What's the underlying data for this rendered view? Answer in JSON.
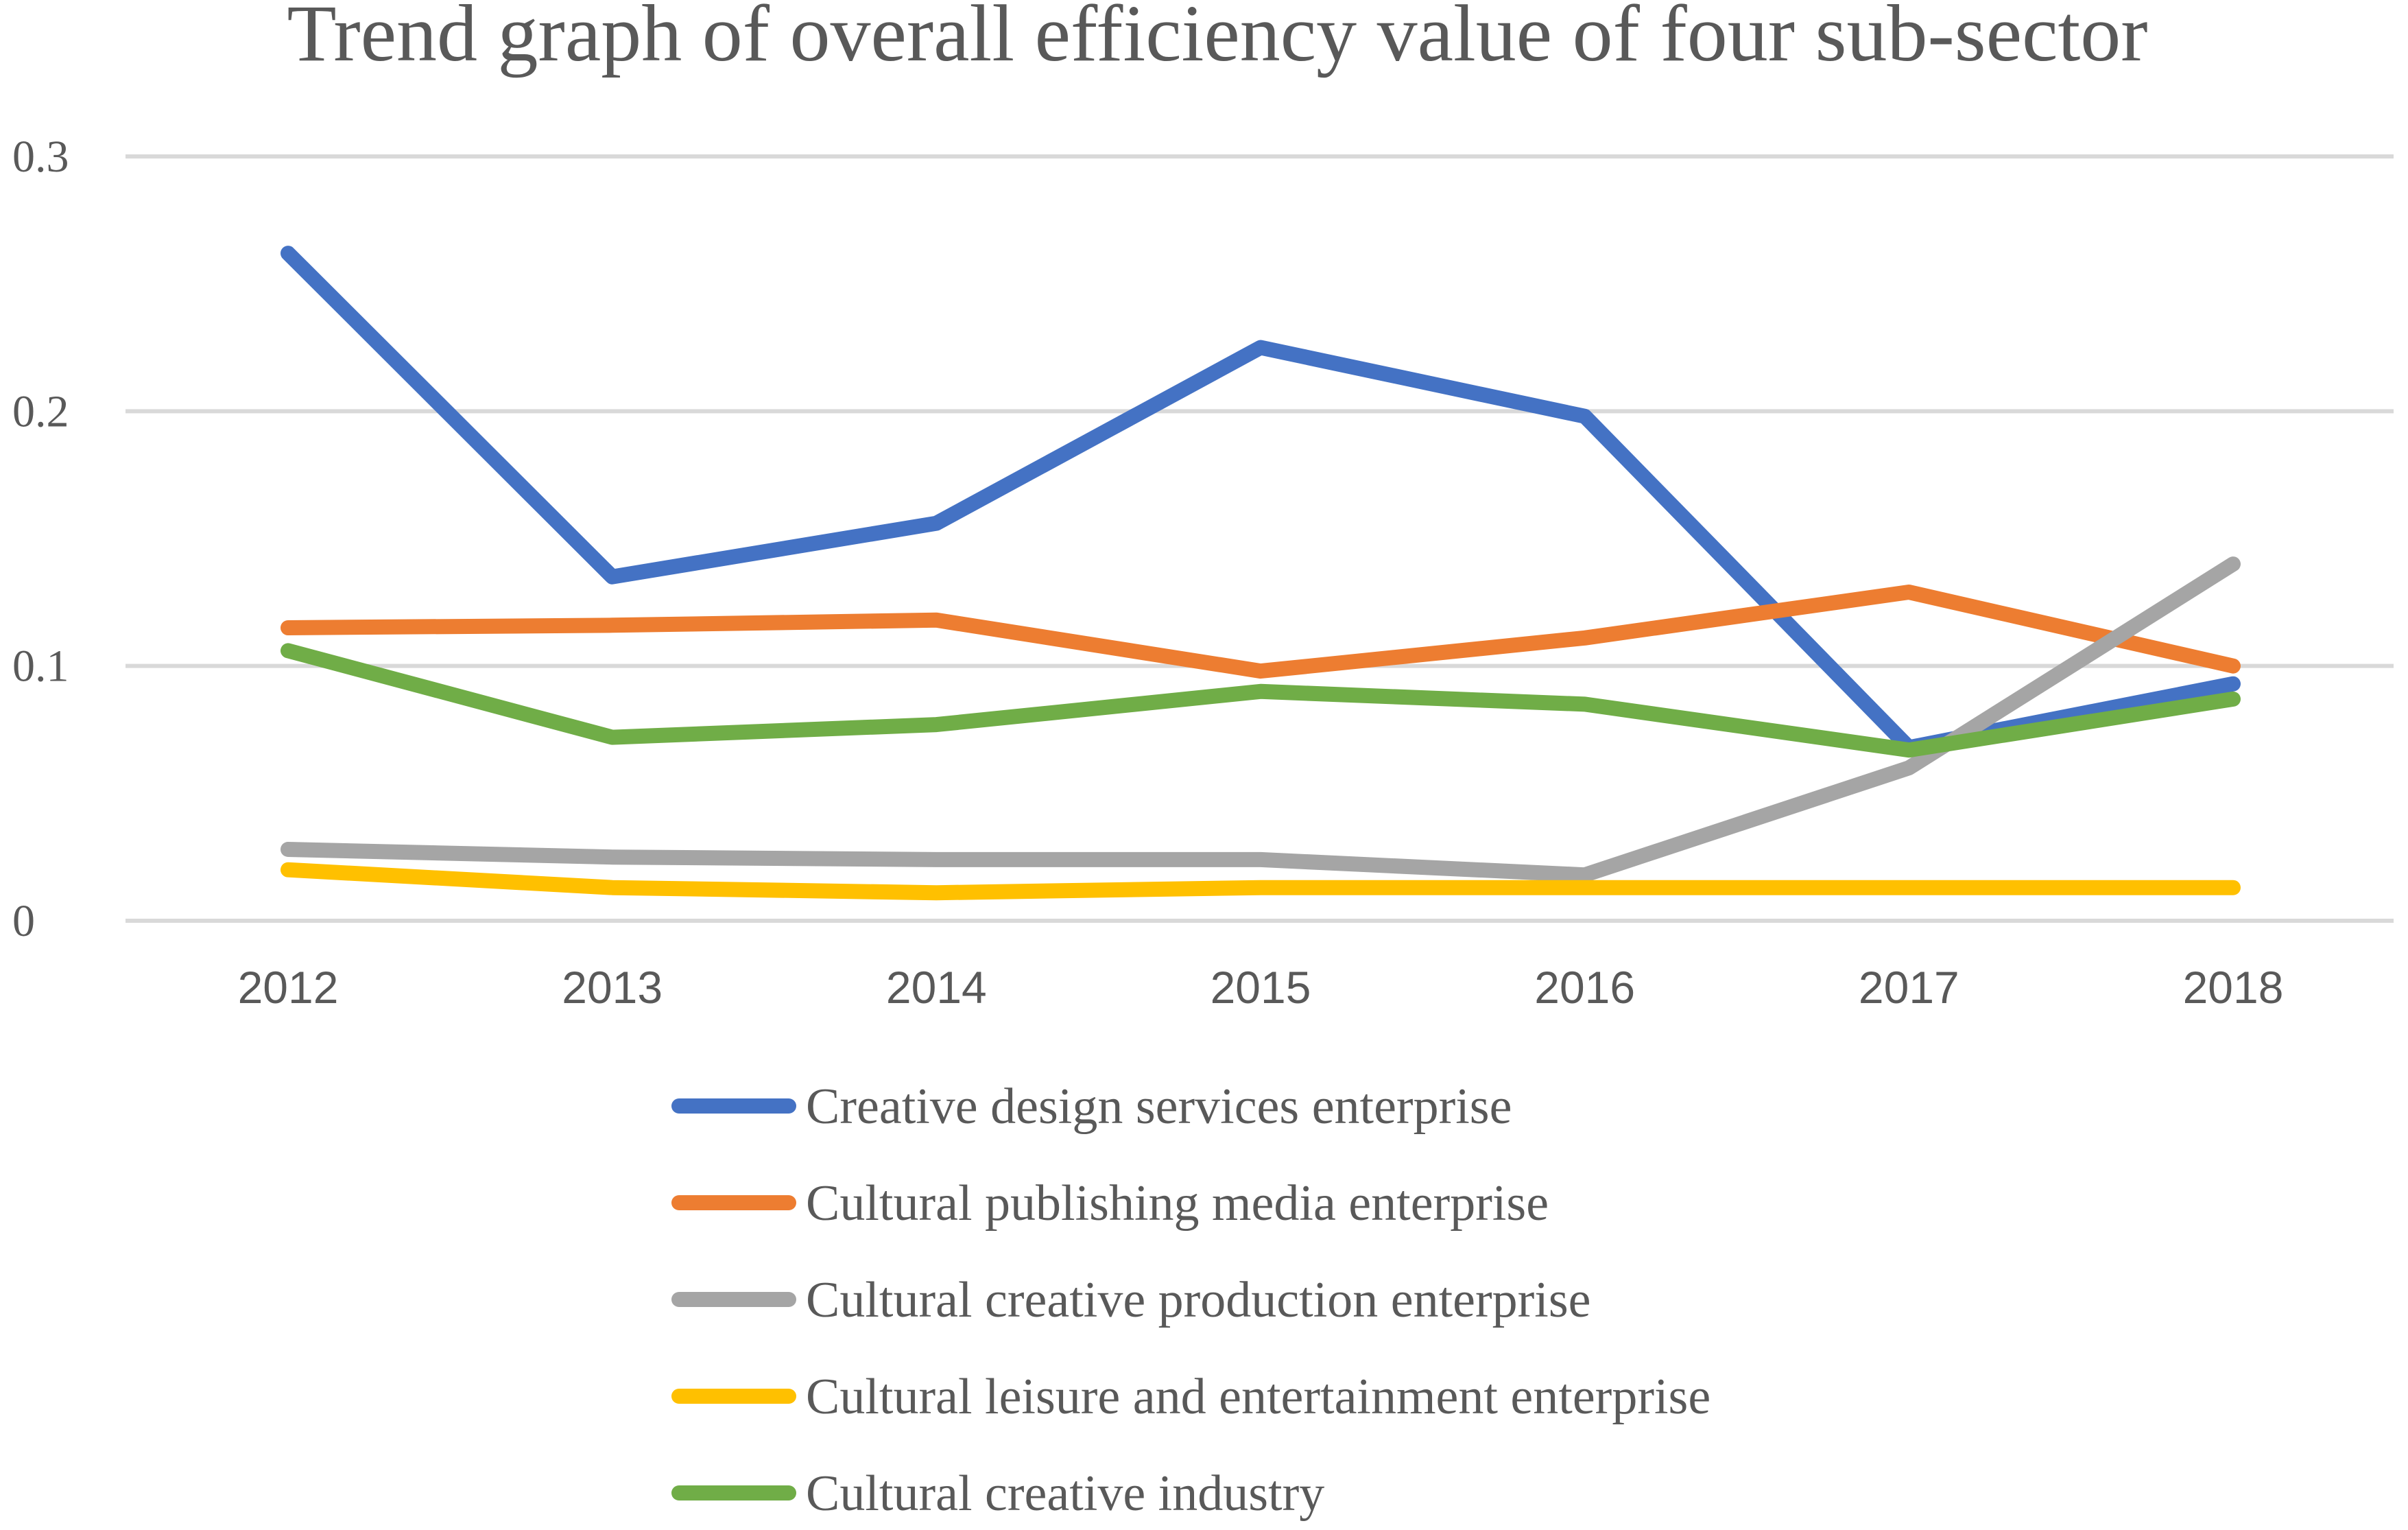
{
  "chart_data": {
    "type": "line",
    "title": "Trend graph of overall efficiency value of four sub-sector",
    "xlabel": "",
    "ylabel": "",
    "categories": [
      "2012",
      "2013",
      "2014",
      "2015",
      "2016",
      "2017",
      "2018"
    ],
    "ylim": [
      0,
      0.3
    ],
    "yticks": [
      0,
      0.1,
      0.2,
      0.3
    ],
    "ytick_labels": [
      "0",
      "0.1",
      "0.2",
      "0.3"
    ],
    "grid": true,
    "legend_position": "bottom",
    "series": [
      {
        "name": "Creative design services enterprise",
        "color": "#4472c4",
        "values": [
          0.262,
          0.135,
          0.156,
          0.225,
          0.198,
          0.068,
          0.093
        ]
      },
      {
        "name": "Cultural publishing media enterprise",
        "color": "#ed7d31",
        "values": [
          0.115,
          0.116,
          0.118,
          0.098,
          0.111,
          0.129,
          0.1
        ]
      },
      {
        "name": "Cultural creative production enterprise",
        "color": "#a5a5a5",
        "values": [
          0.028,
          0.025,
          0.024,
          0.024,
          0.018,
          0.06,
          0.14
        ]
      },
      {
        "name": "Cultural leisure and entertainment enterprise",
        "color": "#ffc000",
        "values": [
          0.02,
          0.013,
          0.011,
          0.013,
          0.013,
          0.013,
          0.013
        ]
      },
      {
        "name": "Cultural creative industry",
        "color": "#70ad47",
        "values": [
          0.106,
          0.072,
          0.077,
          0.09,
          0.085,
          0.067,
          0.087
        ]
      }
    ]
  }
}
